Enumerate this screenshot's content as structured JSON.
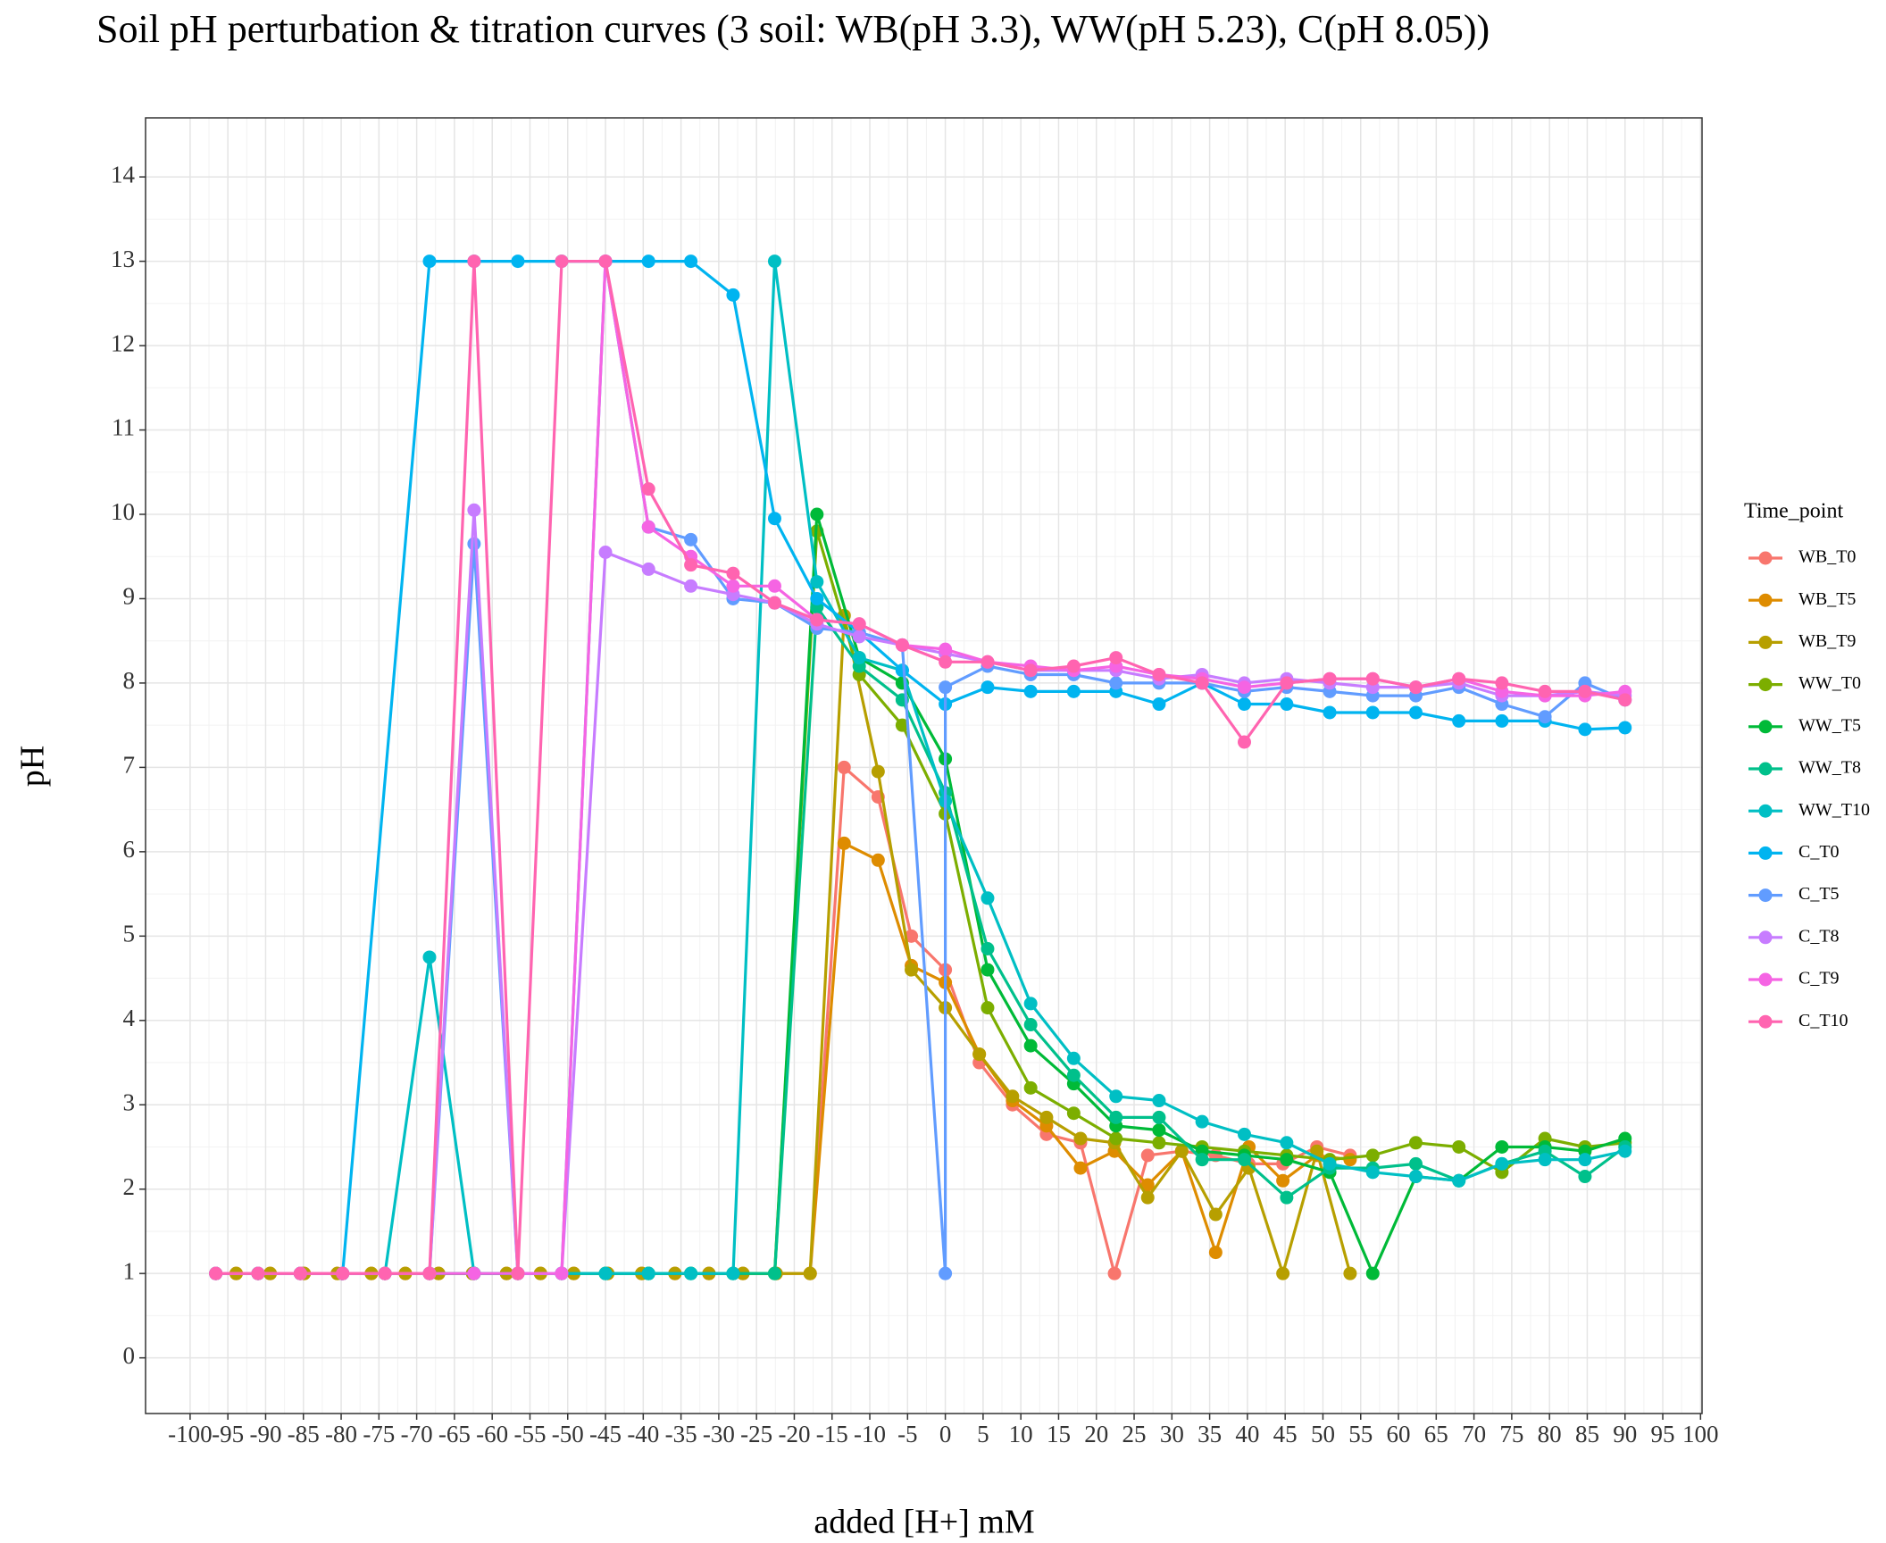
{
  "chart_data": {
    "type": "line",
    "title": "Soil pH perturbation & titration curves (3 soil: WB(pH 3.3), WW(pH 5.23), C(pH 8.05))",
    "x_label": "added [H+] mM",
    "y_label": "pH",
    "legend_title": "Time_point",
    "grid": true,
    "xlim": [
      -105.9,
      100.2
    ],
    "ylim": [
      -0.66,
      14.7
    ],
    "xticks": [
      -100,
      -95,
      -90,
      -85,
      -80,
      -75,
      -70,
      -65,
      -60,
      -55,
      -50,
      -45,
      -40,
      -35,
      -30,
      -25,
      -20,
      -15,
      -10,
      -5,
      0,
      5,
      10,
      15,
      20,
      25,
      30,
      35,
      40,
      45,
      50,
      55,
      60,
      65,
      70,
      75,
      80,
      85,
      90,
      95,
      100
    ],
    "yticks": [
      0,
      1,
      2,
      3,
      4,
      5,
      6,
      7,
      8,
      9,
      10,
      11,
      12,
      13,
      14
    ],
    "x": [
      -96.6,
      -91,
      -85.4,
      -79.8,
      -74.2,
      -68.3,
      -62.4,
      -56.6,
      -50.8,
      -45,
      -39.3,
      -33.7,
      -28.1,
      -22.6,
      -17,
      -11.4,
      -5.7,
      0,
      5.6,
      11.3,
      17,
      22.6,
      28.3,
      34,
      39.6,
      45.2,
      50.9,
      56.6,
      62.3,
      68,
      73.7,
      79.4,
      84.7,
      90
    ],
    "series": [
      {
        "name": "WB_T0",
        "color": "#F8766D",
        "x": [
          -93.9,
          -89.4,
          -84.9,
          -80.5,
          -76,
          -71.5,
          -67.1,
          -62.6,
          -58.1,
          -53.6,
          -49.2,
          -44.7,
          -40.2,
          -35.8,
          -31.3,
          -26.8,
          -22.4,
          -17.9,
          -13.4,
          -8.9,
          -4.5,
          0,
          4.5,
          8.9,
          13.4,
          17.9,
          22.4,
          26.8,
          31.3,
          35.8,
          40.2,
          44.7,
          49.2,
          53.6
        ],
        "values": [
          1,
          1,
          1,
          1,
          1,
          1,
          1,
          1,
          1,
          1,
          1,
          1,
          1,
          1,
          1,
          1,
          1,
          1,
          7.0,
          6.65,
          5.0,
          4.6,
          3.5,
          3.0,
          2.65,
          2.55,
          1.0,
          2.4,
          2.45,
          2.4,
          2.3,
          2.3,
          2.5,
          2.4
        ]
      },
      {
        "name": "WB_T5",
        "color": "#DE8C00",
        "x": [
          -93.9,
          -89.4,
          -84.9,
          -80.5,
          -76,
          -71.5,
          -67.1,
          -62.6,
          -58.1,
          -53.6,
          -49.2,
          -44.7,
          -40.2,
          -35.8,
          -31.3,
          -26.8,
          -22.4,
          -17.9,
          -13.4,
          -8.9,
          -4.5,
          0,
          4.5,
          8.9,
          13.4,
          17.9,
          22.4,
          26.8,
          31.3,
          35.8,
          40.2,
          44.7,
          49.2,
          53.6
        ],
        "values": [
          1,
          1,
          1,
          1,
          1,
          1,
          1,
          1,
          1,
          1,
          1,
          1,
          1,
          1,
          1,
          1,
          1,
          1,
          6.1,
          5.9,
          4.65,
          4.45,
          3.6,
          3.05,
          2.75,
          2.25,
          2.45,
          2.05,
          2.45,
          1.25,
          2.5,
          2.1,
          2.4,
          2.35
        ]
      },
      {
        "name": "WB_T9",
        "color": "#B79F00",
        "x": [
          -93.9,
          -89.4,
          -84.9,
          -80.5,
          -76,
          -71.5,
          -67.1,
          -62.6,
          -58.1,
          -53.6,
          -49.2,
          -44.7,
          -40.2,
          -35.8,
          -31.3,
          -26.8,
          -22.4,
          -17.9,
          -13.4,
          -8.9,
          -4.5,
          0,
          4.5,
          8.9,
          13.4,
          17.9,
          22.4,
          26.8,
          31.3,
          35.8,
          40.2,
          44.7,
          49.2,
          53.6
        ],
        "values": [
          1,
          1,
          1,
          1,
          1,
          1,
          1,
          1,
          1,
          1,
          1,
          1,
          1,
          1,
          1,
          1,
          1,
          1,
          8.8,
          6.95,
          4.6,
          4.15,
          3.6,
          3.1,
          2.85,
          2.6,
          2.55,
          1.9,
          2.45,
          1.7,
          2.25,
          1.0,
          2.45,
          1.0
        ]
      },
      {
        "name": "WW_T0",
        "color": "#7CAE00",
        "values": [
          1,
          1,
          1,
          1,
          1,
          1,
          1,
          1,
          1,
          1,
          1,
          1,
          1,
          1,
          9.8,
          8.1,
          7.5,
          6.45,
          4.15,
          3.2,
          2.9,
          2.6,
          2.55,
          2.5,
          2.45,
          2.4,
          2.35,
          2.4,
          2.55,
          2.5,
          2.2,
          2.6,
          2.5,
          2.55
        ]
      },
      {
        "name": "WW_T5",
        "color": "#00BA38",
        "values": [
          1,
          1,
          1,
          1,
          1,
          1,
          1,
          1,
          1,
          1,
          1,
          1,
          1,
          1,
          10.0,
          8.3,
          8.0,
          7.1,
          4.6,
          3.7,
          3.25,
          2.75,
          2.7,
          2.45,
          2.4,
          2.35,
          2.2,
          1.0,
          2.15,
          2.1,
          2.5,
          2.5,
          2.45,
          2.6
        ]
      },
      {
        "name": "WW_T8",
        "color": "#00C08B",
        "values": [
          1,
          1,
          1,
          1,
          1,
          1,
          1,
          1,
          1,
          1,
          1,
          1,
          1,
          1,
          8.9,
          8.2,
          7.8,
          6.7,
          4.85,
          3.95,
          3.35,
          2.85,
          2.85,
          2.35,
          2.35,
          1.9,
          2.25,
          2.25,
          2.3,
          2.1,
          2.3,
          2.45,
          2.15,
          2.5
        ]
      },
      {
        "name": "WW_T10",
        "color": "#00BFC4",
        "values": [
          1,
          1,
          1,
          1,
          1,
          4.75,
          1,
          1,
          1,
          1,
          1,
          1,
          1,
          13,
          9.2,
          8.3,
          8.15,
          6.6,
          5.45,
          4.2,
          3.55,
          3.1,
          3.05,
          2.8,
          2.65,
          2.55,
          2.3,
          2.2,
          2.15,
          2.1,
          2.3,
          2.35,
          2.35,
          2.45
        ]
      },
      {
        "name": "C_T0",
        "color": "#00B4F0",
        "x": [
          -96.6,
          -91,
          -85.4,
          -79.8,
          -68.3,
          -62.4,
          -56.6,
          -50.8,
          -45,
          -39.3,
          -33.7,
          -28.1,
          -22.6,
          -17,
          -11.4,
          -5.7,
          0,
          5.6,
          11.3,
          17,
          22.6,
          28.3,
          34,
          39.6,
          45.2,
          50.9,
          56.6,
          62.3,
          68,
          73.7,
          79.4,
          84.7,
          90
        ],
        "values": [
          1,
          1,
          1,
          1,
          13,
          13,
          13,
          13,
          13,
          13,
          13,
          12.6,
          9.95,
          9.0,
          8.6,
          8.15,
          7.75,
          7.95,
          7.9,
          7.9,
          7.9,
          7.75,
          8.0,
          7.75,
          7.75,
          7.65,
          7.65,
          7.65,
          7.55,
          7.55,
          7.55,
          7.45,
          7.47
        ]
      },
      {
        "name": "C_T5",
        "color": "#619CFF",
        "x": [
          -96.6,
          -91,
          -85.4,
          -79.8,
          -74.2,
          -68.3,
          -62.4,
          -56.6,
          -50.8,
          -45,
          -39.3,
          -33.7,
          -28.1,
          -22.6,
          -17,
          -11.4,
          -5.7,
          0,
          0,
          5.6,
          11.3,
          17,
          22.6,
          28.3,
          34,
          39.6,
          45.2,
          50.9,
          56.6,
          62.3,
          68,
          73.7,
          79.4,
          84.7,
          90
        ],
        "values": [
          1,
          1,
          1,
          1,
          1,
          1,
          9.65,
          1,
          1,
          13,
          9.85,
          9.7,
          9.0,
          8.95,
          8.65,
          8.6,
          8.45,
          1,
          7.95,
          8.2,
          8.1,
          8.1,
          8.0,
          8.0,
          8.0,
          7.9,
          7.95,
          7.9,
          7.85,
          7.85,
          7.95,
          7.75,
          7.6,
          8.0,
          7.8
        ]
      },
      {
        "name": "C_T8",
        "color": "#C77CFF",
        "values": [
          1,
          1,
          1,
          1,
          1,
          1,
          10.05,
          1,
          1,
          9.55,
          9.35,
          9.15,
          9.05,
          8.95,
          8.7,
          8.55,
          8.45,
          8.35,
          8.25,
          8.15,
          8.15,
          8.15,
          8.05,
          8.1,
          8.0,
          8.05,
          8.0,
          7.95,
          7.95,
          8.0,
          7.85,
          7.85,
          7.9,
          7.85
        ]
      },
      {
        "name": "C_T9",
        "color": "#F564E3",
        "values": [
          1,
          1,
          1,
          1,
          1,
          1,
          1,
          1,
          1,
          13,
          9.85,
          9.5,
          9.15,
          9.15,
          8.75,
          8.7,
          8.45,
          8.4,
          8.25,
          8.2,
          8.15,
          8.2,
          8.1,
          8.05,
          7.95,
          8.0,
          8.05,
          8.05,
          7.95,
          8.05,
          7.9,
          7.85,
          7.85,
          7.9
        ]
      },
      {
        "name": "C_T10",
        "color": "#FF64B0",
        "values": [
          1,
          1,
          1,
          1,
          1,
          1,
          13,
          1,
          13,
          13,
          10.3,
          9.4,
          9.3,
          8.95,
          8.75,
          8.7,
          8.45,
          8.25,
          8.25,
          8.15,
          8.2,
          8.3,
          8.1,
          8.0,
          7.3,
          8.0,
          8.05,
          8.05,
          7.95,
          8.05,
          8.0,
          7.9,
          7.9,
          7.8
        ]
      }
    ]
  }
}
